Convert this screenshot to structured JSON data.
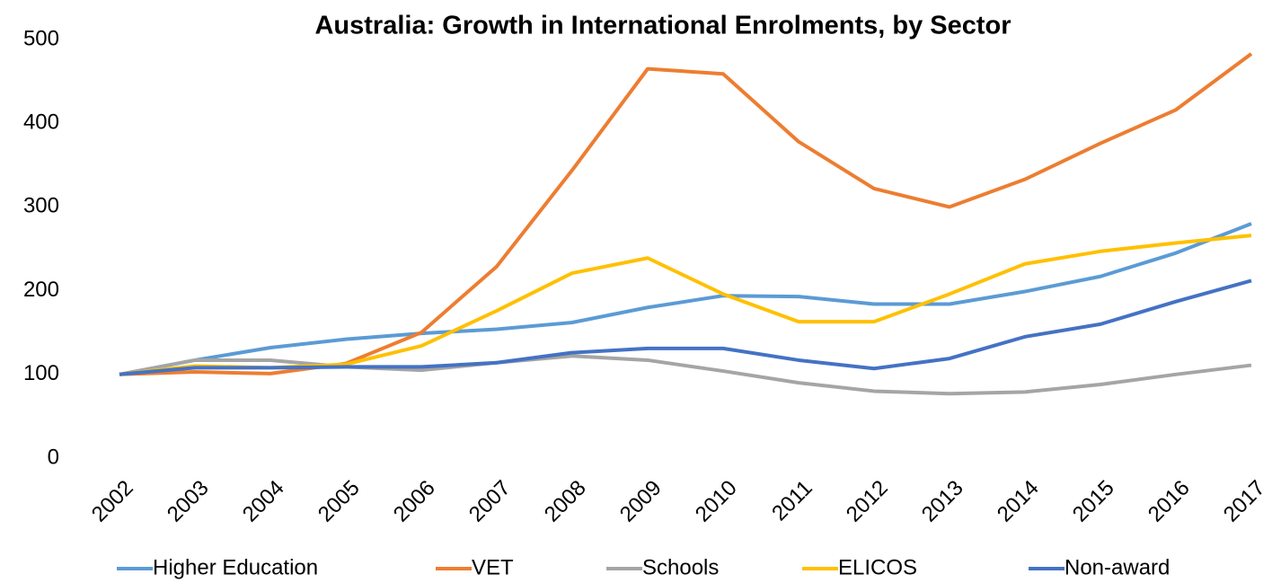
{
  "chart_data": {
    "type": "line",
    "title": "Australia: Growth in International Enrolments, by Sector",
    "categories": [
      "2002",
      "2003",
      "2004",
      "2005",
      "2006",
      "2007",
      "2008",
      "2009",
      "2010",
      "2011",
      "2012",
      "2013",
      "2014",
      "2015",
      "2016",
      "2017"
    ],
    "series": [
      {
        "name": "Higher Education",
        "color": "#5b9bd5",
        "values": [
          100,
          117,
          132,
          142,
          149,
          154,
          162,
          180,
          194,
          193,
          184,
          184,
          199,
          217,
          245,
          280
        ]
      },
      {
        "name": "VET",
        "color": "#ed7d31",
        "values": [
          100,
          103,
          101,
          113,
          150,
          229,
          344,
          465,
          459,
          378,
          322,
          300,
          333,
          376,
          416,
          483
        ]
      },
      {
        "name": "Schools",
        "color": "#a5a5a5",
        "values": [
          100,
          117,
          117,
          109,
          105,
          114,
          122,
          117,
          104,
          90,
          80,
          77,
          79,
          88,
          100,
          111
        ]
      },
      {
        "name": "ELICOS",
        "color": "#ffc000",
        "values": [
          100,
          110,
          108,
          112,
          134,
          176,
          221,
          239,
          196,
          163,
          163,
          196,
          232,
          247,
          257,
          266
        ]
      },
      {
        "name": "Non-award",
        "color": "#4472c4",
        "values": [
          100,
          108,
          108,
          109,
          109,
          114,
          126,
          131,
          131,
          117,
          107,
          119,
          145,
          160,
          187,
          212
        ]
      }
    ],
    "ylim": [
      0,
      500
    ],
    "yticks": [
      0,
      100,
      200,
      300,
      400,
      500
    ],
    "grid": false,
    "legend": "bottom"
  }
}
